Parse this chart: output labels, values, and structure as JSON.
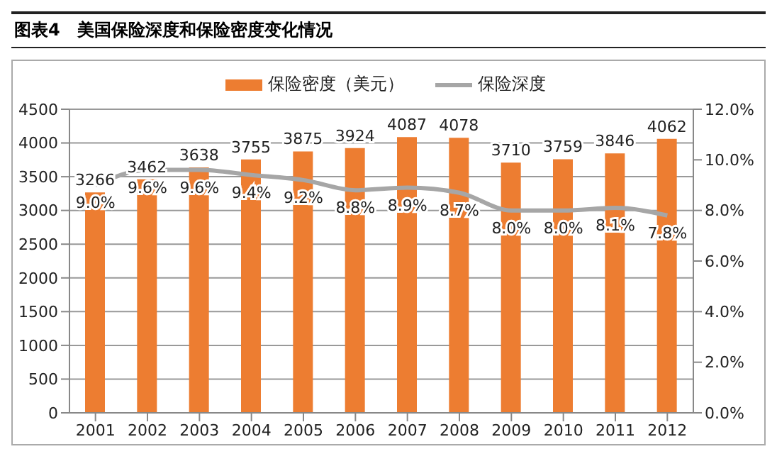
{
  "chart_data": {
    "type": "bar",
    "title": "图表4　美国保险深度和保险密度变化情况",
    "categories": [
      "2001",
      "2002",
      "2003",
      "2004",
      "2005",
      "2006",
      "2007",
      "2008",
      "2009",
      "2010",
      "2011",
      "2012"
    ],
    "series": [
      {
        "name": "保险密度（美元）",
        "color": "#ed7d31",
        "values": [
          3266,
          3462,
          3638,
          3755,
          3875,
          3924,
          4087,
          4078,
          3710,
          3759,
          3846,
          4062
        ],
        "value_labels": [
          "3266",
          "3462",
          "3638",
          "3755",
          "3875",
          "3924",
          "4087",
          "4078",
          "3710",
          "3759",
          "3846",
          "4062"
        ]
      },
      {
        "name": "保险深度",
        "type": "line",
        "axis": "y2",
        "color": "#a6a6a6",
        "values": [
          9.0,
          9.6,
          9.6,
          9.4,
          9.2,
          8.8,
          8.9,
          8.7,
          8.0,
          8.0,
          8.1,
          7.8
        ],
        "value_labels": [
          "9.0%",
          "9.6%",
          "9.6%",
          "9.4%",
          "9.2%",
          "8.8%",
          "8.9%",
          "8.7%",
          "8.0%",
          "8.0%",
          "8.1%",
          "7.8%"
        ]
      }
    ],
    "ylim": [
      0,
      4500
    ],
    "yticks": [
      0,
      500,
      1000,
      1500,
      2000,
      2500,
      3000,
      3500,
      4000,
      4500
    ],
    "y2lim": [
      0,
      12
    ],
    "y2ticks": [
      {
        "value": 0,
        "label": "0.0%"
      },
      {
        "value": 2,
        "label": "2.0%"
      },
      {
        "value": 4,
        "label": "4.0%"
      },
      {
        "value": 6,
        "label": "6.0%"
      },
      {
        "value": 8,
        "label": "8.0%"
      },
      {
        "value": 10,
        "label": "10.0%"
      },
      {
        "value": 12,
        "label": "12.0%"
      }
    ],
    "grid": "y",
    "legend": "top",
    "marker": "none"
  }
}
